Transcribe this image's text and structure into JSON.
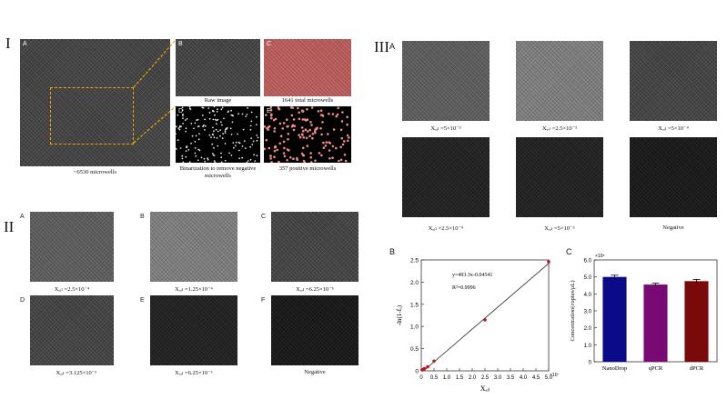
{
  "sections": {
    "I": "I",
    "II": "II",
    "III": "III"
  },
  "panelI": {
    "A": "A",
    "B": "B",
    "C": "C",
    "D": "D",
    "E": "E",
    "cap_A": "~6530 microwells",
    "cap_B": "Raw image",
    "cap_C": "1641 total microwells",
    "cap_D": "Binarization to remove negative microwells",
    "cap_E": "357 positive microwells"
  },
  "panelII": {
    "labels": [
      "A",
      "B",
      "C",
      "D",
      "E",
      "F"
    ],
    "caps": [
      "Xₐᵢₗ =2.5×10⁻⁴",
      "Xₐᵢₗ =1.25×10⁻⁴",
      "Xₐᵢₗ =6.25×10⁻⁵",
      "Xₐᵢₗ =3.125×10⁻⁵",
      "Xₐᵢₗ =6.25×10⁻⁶",
      "Negative"
    ]
  },
  "panelIII": {
    "A": "A",
    "caps": [
      "Xₐᵢₗ =5×10⁻³",
      "Xₐᵢₗ =2.5×10⁻³",
      "Xₐᵢₗ =5×10⁻⁴",
      "Xₐᵢₗ =2.5×10⁻⁴",
      "Xₐᵢₗ =5×10⁻⁵",
      "Negative"
    ],
    "B": "B",
    "C": "C"
  },
  "chart_data": [
    {
      "type": "scatter",
      "xlabel": "Xₐᵢₗ",
      "ylabel": "-ln(1-fₐ)",
      "x_multiplier": "×10⁻³",
      "equation": "y=493.3x-0.04541",
      "r2": "R²=0.9996",
      "xlim": [
        0,
        5
      ],
      "ylim": [
        0,
        2.5
      ],
      "xticks": [
        "0",
        "0.5",
        "1.0",
        "1.5",
        "2.0",
        "2.5",
        "3.0",
        "3.5",
        "4.0",
        "4.5",
        "5.0"
      ],
      "yticks": [
        "0",
        "0.5",
        "1.0",
        "1.5",
        "2.0",
        "2.5"
      ],
      "x": [
        0.03125,
        0.0625,
        0.125,
        0.25,
        0.5,
        2.5,
        5.0
      ],
      "y": [
        0.02,
        0.03,
        0.05,
        0.09,
        0.22,
        1.15,
        2.46
      ]
    },
    {
      "type": "bar",
      "ylabel": "Concentration(copies/μL)",
      "y_multiplier": "×10⁶",
      "ylim": [
        0,
        6
      ],
      "yticks": [
        "0",
        "1.0",
        "2.0",
        "3.0",
        "4.0",
        "5.0",
        "6.0"
      ],
      "categories": [
        "NanoDrop",
        "qPCR",
        "dPCR"
      ],
      "values": [
        5.0,
        4.55,
        4.75
      ],
      "errors": [
        0.1,
        0.08,
        0.1
      ],
      "colors": [
        "#0b0b8a",
        "#7a0a73",
        "#7a0a0a"
      ]
    }
  ]
}
